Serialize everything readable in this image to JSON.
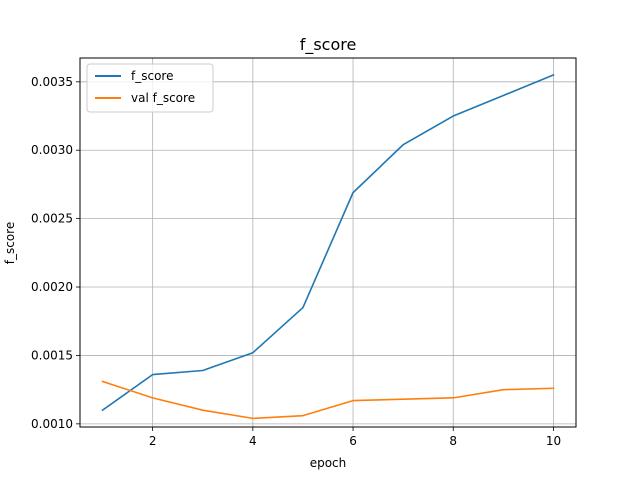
{
  "chart_data": {
    "type": "line",
    "title": "f_score",
    "xlabel": "epoch",
    "ylabel": "f_score",
    "x": [
      1,
      2,
      3,
      4,
      5,
      6,
      7,
      8,
      9,
      10
    ],
    "series": [
      {
        "name": "f_score",
        "color": "#1f77b4",
        "values": [
          0.0011,
          0.00136,
          0.00139,
          0.00152,
          0.00185,
          0.00269,
          0.00304,
          0.00325,
          0.0034,
          0.00355
        ]
      },
      {
        "name": "val f_score",
        "color": "#ff7f0e",
        "values": [
          0.00131,
          0.00119,
          0.0011,
          0.00104,
          0.00106,
          0.00117,
          0.00118,
          0.00119,
          0.00125,
          0.00126
        ]
      }
    ],
    "xlim": [
      0.55,
      10.45
    ],
    "ylim": [
      0.000977,
      0.003674
    ],
    "xticks": [
      2,
      4,
      6,
      8,
      10
    ],
    "xtick_labels": [
      "2",
      "4",
      "6",
      "8",
      "10"
    ],
    "yticks": [
      0.001,
      0.0015,
      0.002,
      0.0025,
      0.003,
      0.0035
    ],
    "ytick_labels": [
      "0.0010",
      "0.0015",
      "0.0020",
      "0.0025",
      "0.0030",
      "0.0035"
    ],
    "grid": true,
    "legend_position": "top-left"
  }
}
